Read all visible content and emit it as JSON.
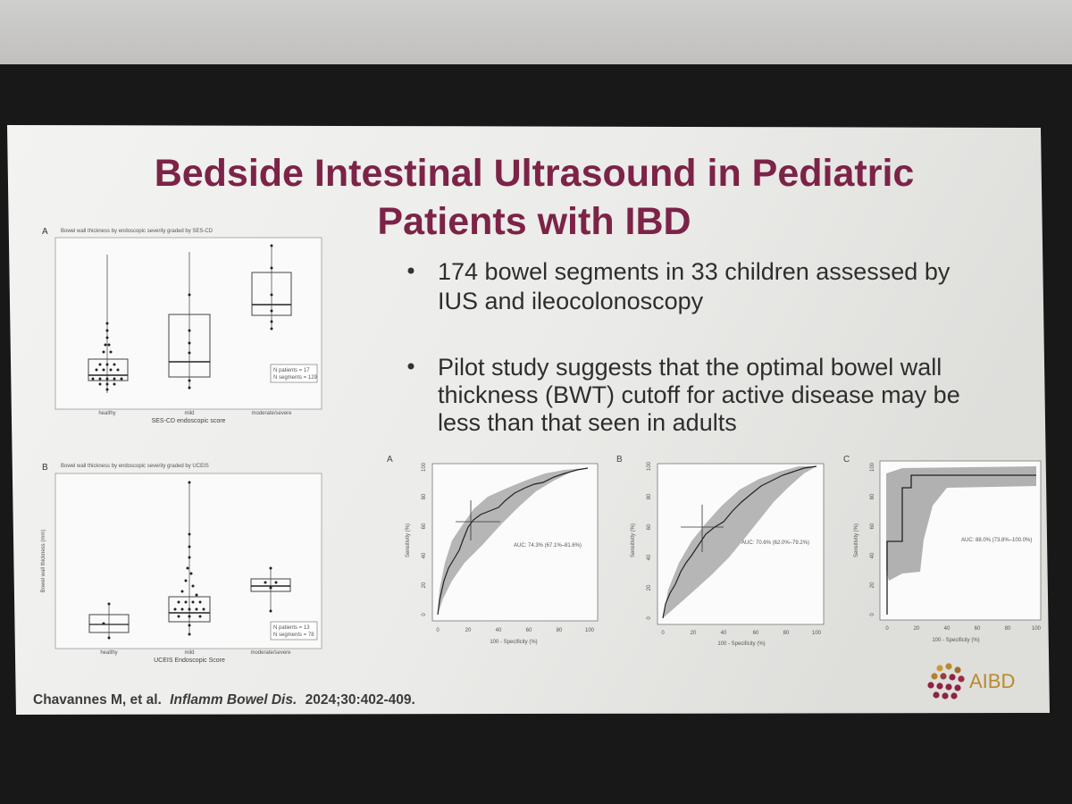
{
  "slide": {
    "title_line1": "Bedside Intestinal Ultrasound in Pediatric",
    "title_line2": "Patients with IBD",
    "bullets": [
      [
        "174 bowel segments in 33 children assessed by",
        "IUS and ileocolonoscopy"
      ],
      [
        "Pilot study suggests that the optimal bowel wall",
        "thickness (BWT) cutoff for active disease may be",
        "less than that seen in adults"
      ]
    ],
    "citation_authors": "Chavannes M, et al.",
    "citation_journal": "Inflamm Bowel Dis.",
    "citation_rest": "2024;30:402-409.",
    "logo_text": "AIBD",
    "colors": {
      "title": "#7c2347",
      "logo_gold": "#b88b2c",
      "logo_red": "#8e2441",
      "roc_band": "#a9a9a9"
    }
  },
  "boxplot_a": {
    "panel": "A",
    "title": "Bowel wall thickness by endoscopic severity graded by SES-CD",
    "xlabel": "SES-CD endoscopic score",
    "categories": [
      "healthy",
      "mild",
      "moderate/severe"
    ],
    "legend": [
      "N patients = 17",
      "N segments = 129"
    ]
  },
  "boxplot_b": {
    "panel": "B",
    "title": "Bowel wall thickness by endoscopic severity graded by UCEIS",
    "xlabel": "UCEIS Endoscopic Score",
    "ylabel": "Bowel wall thickness (mm)",
    "categories": [
      "healthy",
      "mild",
      "moderate/severe"
    ],
    "legend": [
      "N patients = 13",
      "N segments = 78"
    ]
  },
  "roc": [
    {
      "panel": "A",
      "xlabel": "100 - Specificity (%)",
      "ylabel": "Sensitivity (%)",
      "auc": "AUC: 74.3% (67.1%–81.6%)",
      "xticks": [
        "0",
        "20",
        "40",
        "60",
        "80",
        "100"
      ],
      "yticks": [
        "0",
        "20",
        "40",
        "60",
        "80",
        "100"
      ]
    },
    {
      "panel": "B",
      "xlabel": "100 - Specificity (%)",
      "ylabel": "Sensitivity (%)",
      "auc": "AUC: 70.6% (62.0%–79.2%)",
      "xticks": [
        "0",
        "20",
        "40",
        "60",
        "80",
        "100"
      ],
      "yticks": [
        "0",
        "20",
        "40",
        "60",
        "80",
        "100"
      ]
    },
    {
      "panel": "C",
      "xlabel": "100 - Specificity (%)",
      "ylabel": "Sensitivity (%)",
      "auc": "AUC: 88.0% (73.8%–100.0%)",
      "xticks": [
        "0",
        "20",
        "40",
        "60",
        "80",
        "100"
      ],
      "yticks": [
        "0",
        "20",
        "40",
        "60",
        "80",
        "100"
      ]
    }
  ]
}
